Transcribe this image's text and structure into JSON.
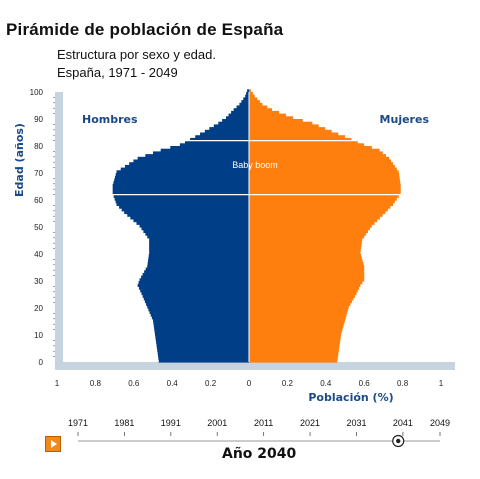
{
  "title": "Pirámide de población de España",
  "subtitle_line1": "Estructura por sexo y edad.",
  "subtitle_line2": "España, 1971 - 2049",
  "timeline": {
    "years": [
      "1971",
      "1981",
      "1991",
      "2001",
      "2011",
      "2021",
      "2031",
      "2041",
      "2049"
    ],
    "current_value": 2040,
    "current_label": "Año 2040",
    "play_label": "Reproducir"
  },
  "chart_data": {
    "type": "bar",
    "orientation": "horizontal",
    "subtype": "population-pyramid",
    "ylabel": "Edad (años)",
    "xlabel": "Población (%)",
    "y_ticks": [
      0,
      10,
      20,
      30,
      40,
      50,
      60,
      70,
      80,
      90,
      100
    ],
    "x_ticks": [
      "1",
      "0.8",
      "0.6",
      "0.4",
      "0.2",
      "0",
      "0.2",
      "0.4",
      "0.6",
      "0.8",
      "1"
    ],
    "xlim": [
      -1,
      1
    ],
    "ylim": [
      0,
      100
    ],
    "annotation": "Baby boom",
    "annotation_age": 73,
    "highlight_ages": [
      62,
      82
    ],
    "colors": {
      "Hombres": "#003f87",
      "Mujeres": "#ff7f0e"
    },
    "series": [
      {
        "name": "Hombres",
        "side": "left",
        "ages": [
          0,
          5,
          10,
          15,
          20,
          25,
          28,
          30,
          35,
          40,
          45,
          50,
          55,
          58,
          60,
          62,
          65,
          70,
          75,
          78,
          80,
          83,
          85,
          88,
          90,
          93,
          95,
          98,
          100
        ],
        "values": [
          0.47,
          0.48,
          0.49,
          0.5,
          0.53,
          0.56,
          0.58,
          0.57,
          0.53,
          0.52,
          0.52,
          0.57,
          0.65,
          0.69,
          0.7,
          0.71,
          0.71,
          0.69,
          0.58,
          0.46,
          0.36,
          0.28,
          0.23,
          0.16,
          0.12,
          0.08,
          0.05,
          0.02,
          0.01
        ]
      },
      {
        "name": "Mujeres",
        "side": "right",
        "ages": [
          0,
          5,
          10,
          15,
          20,
          25,
          28,
          30,
          35,
          40,
          45,
          50,
          55,
          58,
          60,
          62,
          65,
          70,
          75,
          78,
          80,
          83,
          85,
          88,
          90,
          93,
          95,
          98,
          100
        ],
        "values": [
          0.46,
          0.47,
          0.48,
          0.5,
          0.52,
          0.56,
          0.58,
          0.6,
          0.6,
          0.58,
          0.59,
          0.64,
          0.71,
          0.75,
          0.77,
          0.79,
          0.79,
          0.78,
          0.73,
          0.68,
          0.6,
          0.5,
          0.43,
          0.33,
          0.23,
          0.12,
          0.07,
          0.03,
          0.01
        ]
      }
    ]
  }
}
